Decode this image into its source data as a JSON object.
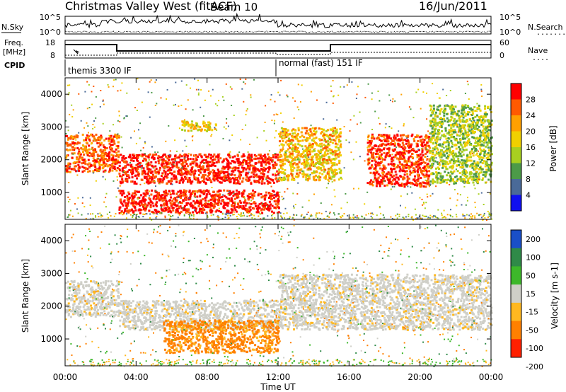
{
  "header": {
    "title": "Christmas Valley West (fitACF)",
    "beam": "Beam 10",
    "date": "16/Jun/2011"
  },
  "top_panel": {
    "left_label": "N.Sky",
    "left_ticks": [
      "10^5",
      "10^0"
    ],
    "right_ticks": [
      "10^5",
      "10^0"
    ],
    "right_label": "N.Search",
    "right_dots": "........"
  },
  "freq_panel": {
    "left_label_1": "Freq.",
    "left_label_2": "[MHz]",
    "left_ticks": [
      "18",
      "8"
    ],
    "right_ticks": [
      "60",
      "0"
    ],
    "right_label": "Nave",
    "right_dots": "...."
  },
  "cpid_panel": {
    "label": "CPID",
    "segments": [
      "themis 3300 IF",
      "normal (fast) 151 IF"
    ]
  },
  "chart_data": [
    {
      "type": "heatmap",
      "parameter": "Power",
      "ylabel": "Slant Range [km]",
      "colorbar_label": "Power [dB]",
      "colorbar_ticks": [
        "28",
        "24",
        "20",
        "16",
        "12",
        "8",
        "4"
      ],
      "colorbar_colors": [
        "#ff0000",
        "#ff5a00",
        "#ffa000",
        "#f0d000",
        "#a8d020",
        "#4c9a48",
        "#4a6a98",
        "#1010f0"
      ],
      "ylim": [
        180,
        4500
      ],
      "yticks": [
        "4000",
        "3000",
        "2000",
        "1000"
      ],
      "xlim": [
        "00:00",
        "24:00"
      ],
      "features": [
        {
          "from": "00:00",
          "to": "03:00",
          "range_km": [
            1650,
            2800
          ],
          "power_dB": 26
        },
        {
          "from": "03:00",
          "to": "12:00",
          "range_km": [
            1300,
            2200
          ],
          "power_dB": 30
        },
        {
          "from": "03:00",
          "to": "12:00",
          "range_km": [
            400,
            1100
          ],
          "power_dB": 30
        },
        {
          "from": "06:30",
          "to": "08:30",
          "range_km": [
            2900,
            3200
          ],
          "power_dB": 18
        },
        {
          "from": "12:00",
          "to": "15:30",
          "range_km": [
            1400,
            3000
          ],
          "power_dB": 20
        },
        {
          "from": "17:00",
          "to": "20:30",
          "range_km": [
            1200,
            2800
          ],
          "power_dB": 28
        },
        {
          "from": "20:30",
          "to": "24:00",
          "range_km": [
            1300,
            3700
          ],
          "power_dB": 14
        }
      ]
    },
    {
      "type": "heatmap",
      "parameter": "Velocity",
      "ylabel": "Slant Range [km]",
      "xlabel": "Time UT",
      "colorbar_label": "Velocity [m s-1]",
      "colorbar_ticks": [
        "200",
        "100",
        "50",
        "15",
        "-15",
        "-50",
        "-100",
        "-200"
      ],
      "colorbar_colors": [
        "#1a4fc8",
        "#2f8a48",
        "#3db82a",
        "#cfcfc8",
        "#ffb820",
        "#ff8000",
        "#ff2000"
      ],
      "ylim": [
        180,
        4500
      ],
      "yticks": [
        "4000",
        "3000",
        "2000",
        "1000"
      ],
      "xticks": [
        "00:00",
        "04:00",
        "08:00",
        "12:00",
        "16:00",
        "20:00",
        "00:00"
      ],
      "features": [
        {
          "from": "00:00",
          "to": "03:00",
          "range_km": [
            1700,
            2800
          ],
          "velocity": 0
        },
        {
          "from": "03:00",
          "to": "12:00",
          "range_km": [
            1300,
            2200
          ],
          "velocity": 0
        },
        {
          "from": "05:30",
          "to": "12:00",
          "range_km": [
            600,
            1600
          ],
          "velocity": -60
        },
        {
          "from": "12:00",
          "to": "24:00",
          "range_km": [
            1300,
            3000
          ],
          "velocity": 0
        }
      ]
    }
  ],
  "colors": {
    "grey_scatter": "#cfcfc8",
    "noise_line": "#000000"
  }
}
